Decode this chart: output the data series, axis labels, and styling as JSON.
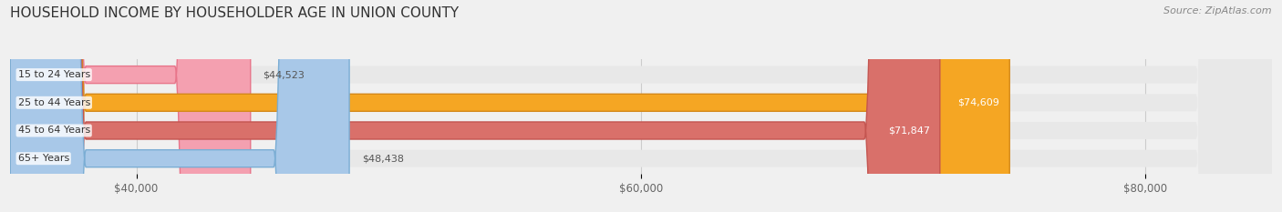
{
  "title": "HOUSEHOLD INCOME BY HOUSEHOLDER AGE IN UNION COUNTY",
  "source": "Source: ZipAtlas.com",
  "categories": [
    "15 to 24 Years",
    "25 to 44 Years",
    "45 to 64 Years",
    "65+ Years"
  ],
  "values": [
    44523,
    74609,
    71847,
    48438
  ],
  "bar_colors": [
    "#f4a0b0",
    "#f5a623",
    "#d9706a",
    "#a8c8e8"
  ],
  "bar_edge_colors": [
    "#e8758a",
    "#d4891a",
    "#c45550",
    "#7aadd4"
  ],
  "label_colors": [
    "#555555",
    "#ffffff",
    "#ffffff",
    "#555555"
  ],
  "value_labels": [
    "$44,523",
    "$74,609",
    "$71,847",
    "$48,438"
  ],
  "xlim_min": 35000,
  "xlim_max": 85000,
  "xticks": [
    40000,
    60000,
    80000
  ],
  "xtick_labels": [
    "$40,000",
    "$60,000",
    "$80,000"
  ],
  "figsize": [
    14.06,
    2.33
  ],
  "dpi": 100,
  "background_color": "#f0f0f0",
  "bar_bg_color": "#e8e8e8",
  "title_fontsize": 11,
  "source_fontsize": 8,
  "bar_height": 0.62
}
